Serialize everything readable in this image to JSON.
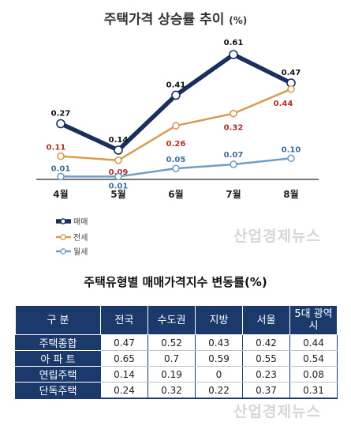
{
  "chart_data": {
    "type": "line",
    "title": "주택가격 상승률 추이",
    "unit": "(%)",
    "categories": [
      "4월",
      "5월",
      "6월",
      "7월",
      "8월"
    ],
    "series": [
      {
        "name": "매매",
        "color": "#1b2f5e",
        "values": [
          0.27,
          0.14,
          0.41,
          0.61,
          0.47
        ],
        "labels": [
          "0.27",
          "0.14",
          "0.41",
          "0.61",
          "0.47"
        ],
        "label_color": "#111111"
      },
      {
        "name": "전세",
        "color": "#d99a52",
        "values": [
          0.11,
          0.09,
          0.26,
          0.32,
          0.44
        ],
        "labels": [
          "0.11",
          "0.09",
          "0.26",
          "0.32",
          "0.44"
        ],
        "label_color": "#b0302a"
      },
      {
        "name": "월세",
        "color": "#6f9fc4",
        "values": [
          0.01,
          0.01,
          0.05,
          0.07,
          0.1
        ],
        "labels": [
          "0.01",
          "0.01",
          "0.05",
          "0.07",
          "0.10"
        ],
        "label_color": "#3f6e9c"
      }
    ],
    "ylim": [
      0,
      0.61
    ]
  },
  "watermark": "산업경제뉴스",
  "table": {
    "title": "주택유형별 매매가격지수 변동률(%)",
    "headers": [
      "구 분",
      "전국",
      "수도권",
      "지방",
      "서울",
      "5대 광역시"
    ],
    "rows": [
      {
        "label": "주택종합",
        "values": [
          "0.47",
          "0.52",
          "0.43",
          "0.42",
          "0.44"
        ]
      },
      {
        "label": "아 파 트",
        "values": [
          "0.65",
          "0.7",
          "0.59",
          "0.55",
          "0.54"
        ]
      },
      {
        "label": "연립주택",
        "values": [
          "0.14",
          "0.19",
          "0",
          "0.23",
          "0.08"
        ]
      },
      {
        "label": "단독주택",
        "values": [
          "0.24",
          "0.32",
          "0.22",
          "0.37",
          "0.31"
        ]
      }
    ]
  }
}
